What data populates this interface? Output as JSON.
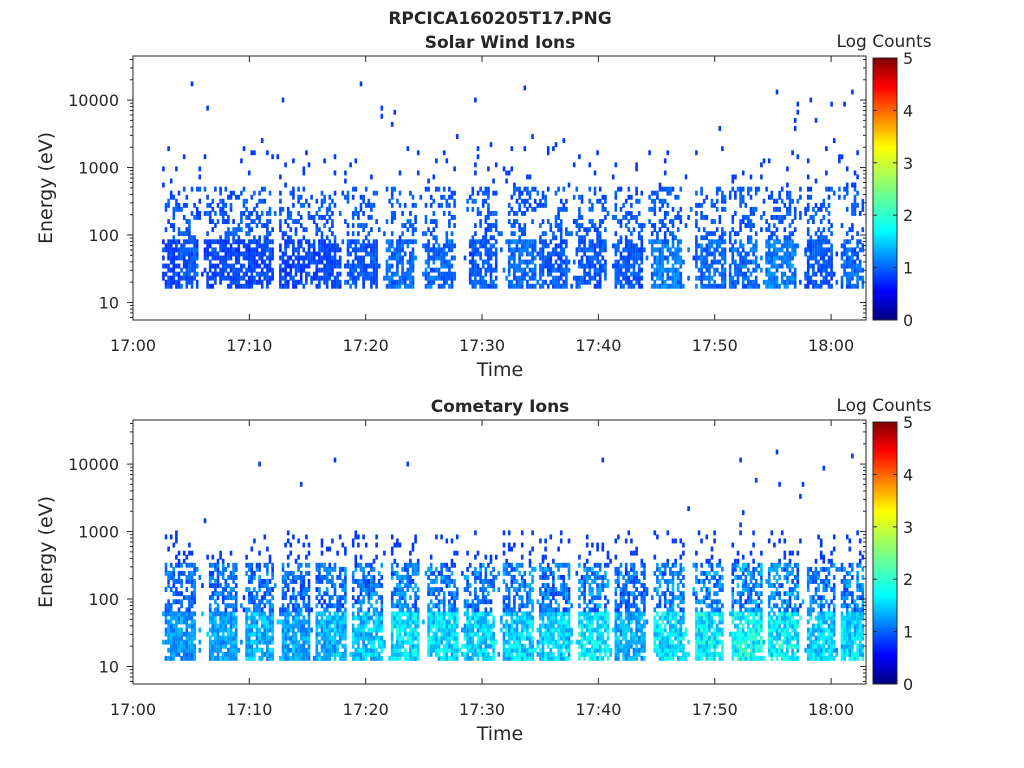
{
  "figure": {
    "title": "RPCICA160205T17.PNG"
  },
  "colorbar": {
    "label": "Log Counts",
    "ticks": [
      "0",
      "1",
      "2",
      "3",
      "4",
      "5"
    ],
    "range": [
      0,
      5
    ],
    "colormap": "jet"
  },
  "chart_data": [
    {
      "type": "heatmap",
      "title": "Solar Wind Ions",
      "xlabel": "Time",
      "ylabel": "Energy (eV)",
      "x_ticks": [
        "17:00",
        "17:10",
        "17:20",
        "17:30",
        "17:40",
        "17:50",
        "18:00"
      ],
      "x_range_minutes": [
        0,
        63
      ],
      "y_scale": "log",
      "y_ticks": [
        "10",
        "100",
        "1000",
        "10000"
      ],
      "y_range_eV": [
        5.5,
        45000
      ],
      "color_label": "Log Counts",
      "color_range": [
        0,
        5
      ],
      "ion_bursts": [
        {
          "t": 3.5,
          "intensity": 0.5
        },
        {
          "t": 4.2,
          "intensity": 0.6
        },
        {
          "t": 7.3,
          "intensity": 0.5
        },
        {
          "t": 8.7,
          "intensity": 0.5
        },
        {
          "t": 10.8,
          "intensity": 0.5
        },
        {
          "t": 13.8,
          "intensity": 0.5
        },
        {
          "t": 16.5,
          "intensity": 0.5
        },
        {
          "t": 19.6,
          "intensity": 0.6
        },
        {
          "t": 22.8,
          "intensity": 0.7
        },
        {
          "t": 26.3,
          "intensity": 0.7
        },
        {
          "t": 30.0,
          "intensity": 0.6
        },
        {
          "t": 33.3,
          "intensity": 0.7
        },
        {
          "t": 36.0,
          "intensity": 0.6
        },
        {
          "t": 39.3,
          "intensity": 0.6
        },
        {
          "t": 42.5,
          "intensity": 0.6
        },
        {
          "t": 45.8,
          "intensity": 0.8
        },
        {
          "t": 49.5,
          "intensity": 0.7
        },
        {
          "t": 52.3,
          "intensity": 0.7
        },
        {
          "t": 55.6,
          "intensity": 0.8
        },
        {
          "t": 58.8,
          "intensity": 0.6
        },
        {
          "t": 62.0,
          "intensity": 0.7
        }
      ]
    },
    {
      "type": "heatmap",
      "title": "Cometary Ions",
      "xlabel": "Time",
      "ylabel": "Energy (eV)",
      "x_ticks": [
        "17:00",
        "17:10",
        "17:20",
        "17:30",
        "17:40",
        "17:50",
        "18:00"
      ],
      "x_range_minutes": [
        0,
        63
      ],
      "y_scale": "log",
      "y_ticks": [
        "10",
        "100",
        "1000",
        "10000"
      ],
      "y_range_eV": [
        5.5,
        45000
      ],
      "color_label": "Log Counts",
      "color_range": [
        0,
        5
      ],
      "ion_bursts": [
        {
          "t": 4.0,
          "intensity": 1.1
        },
        {
          "t": 7.6,
          "intensity": 1.2
        },
        {
          "t": 10.8,
          "intensity": 1.3
        },
        {
          "t": 13.9,
          "intensity": 1.2
        },
        {
          "t": 16.9,
          "intensity": 1.3
        },
        {
          "t": 20.0,
          "intensity": 1.4
        },
        {
          "t": 23.3,
          "intensity": 1.6
        },
        {
          "t": 26.5,
          "intensity": 1.6
        },
        {
          "t": 29.6,
          "intensity": 1.5
        },
        {
          "t": 33.0,
          "intensity": 1.5
        },
        {
          "t": 36.2,
          "intensity": 1.5
        },
        {
          "t": 39.5,
          "intensity": 1.7
        },
        {
          "t": 42.6,
          "intensity": 1.3
        },
        {
          "t": 45.9,
          "intensity": 1.6
        },
        {
          "t": 49.4,
          "intensity": 1.7
        },
        {
          "t": 52.6,
          "intensity": 1.8
        },
        {
          "t": 55.8,
          "intensity": 1.7
        },
        {
          "t": 59.0,
          "intensity": 1.5
        },
        {
          "t": 62.0,
          "intensity": 1.5
        }
      ]
    }
  ]
}
